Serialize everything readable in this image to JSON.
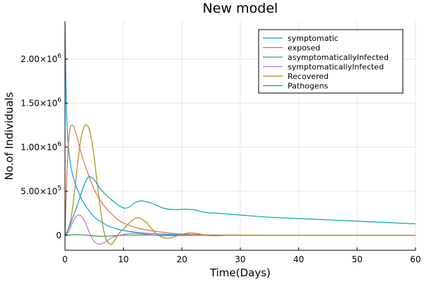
{
  "chart_data": {
    "type": "line",
    "title": "New model",
    "xlabel": "Time(Days)",
    "ylabel": "No.of Individuals",
    "xlim": [
      0,
      60
    ],
    "ylim": [
      -170000,
      2430000
    ],
    "grid": true,
    "legend_position": "top-right",
    "x_ticks": [
      {
        "value": 0,
        "label": "0"
      },
      {
        "value": 10,
        "label": "10"
      },
      {
        "value": 20,
        "label": "20"
      },
      {
        "value": 30,
        "label": "30"
      },
      {
        "value": 40,
        "label": "40"
      },
      {
        "value": 50,
        "label": "50"
      },
      {
        "value": 60,
        "label": "60"
      }
    ],
    "y_ticks": [
      {
        "value": 0,
        "mantissa": "0",
        "exponent": ""
      },
      {
        "value": 500000,
        "mantissa": "5.00×10",
        "exponent": "5"
      },
      {
        "value": 1000000,
        "mantissa": "1.00×10",
        "exponent": "6"
      },
      {
        "value": 1500000,
        "mantissa": "1.50×10",
        "exponent": "6"
      },
      {
        "value": 2000000,
        "mantissa": "2.00×10",
        "exponent": "6"
      }
    ],
    "series": [
      {
        "name": "symptomatic",
        "color": "#009af9",
        "x": [
          0,
          0.2,
          0.5,
          1,
          1.5,
          2,
          3,
          4,
          5,
          6,
          7,
          8,
          9,
          10,
          12,
          14,
          16,
          18,
          20,
          25,
          30,
          40,
          50,
          60
        ],
        "y": [
          2400000,
          1560000,
          1070000,
          780000,
          640000,
          540000,
          390000,
          290000,
          210000,
          160000,
          120000,
          90000,
          70000,
          55000,
          35000,
          22000,
          15000,
          10000,
          7000,
          3000,
          1000,
          0,
          0,
          0
        ]
      },
      {
        "name": "exposed",
        "color": "#e26f46",
        "x": [
          0,
          0.3,
          0.6,
          0.9,
          1.2,
          1.5,
          2,
          2.5,
          3,
          4,
          5,
          6,
          7,
          8,
          9,
          10,
          12,
          14,
          16,
          18,
          20,
          22,
          25,
          30,
          40,
          50,
          60
        ],
        "y": [
          0,
          650000,
          1050000,
          1220000,
          1250000,
          1230000,
          1130000,
          1000000,
          880000,
          690000,
          520000,
          400000,
          310000,
          240000,
          180000,
          140000,
          90000,
          60000,
          40000,
          25000,
          15000,
          10000,
          5000,
          2000,
          0,
          0,
          0
        ]
      },
      {
        "name": "asymptomaticallyInfected",
        "color": "#3da44d",
        "x": [
          0,
          1,
          2,
          3,
          4,
          5,
          6,
          7,
          8,
          10,
          12,
          15,
          20,
          25,
          30,
          40,
          50,
          60
        ],
        "y": [
          0,
          5000,
          8000,
          5000,
          0,
          -8000,
          -12000,
          -12000,
          -8000,
          0,
          3000,
          2000,
          0,
          0,
          0,
          0,
          0,
          0
        ]
      },
      {
        "name": "symptomaticallyInfected",
        "color": "#c271d2",
        "x": [
          0,
          0.5,
          1,
          1.5,
          2,
          2.5,
          3,
          3.5,
          4,
          4.5,
          5,
          5.5,
          6,
          6.5,
          7,
          8,
          9,
          10,
          11,
          12,
          13,
          14,
          15,
          16,
          18,
          20,
          25,
          30,
          40,
          50,
          60
        ],
        "y": [
          0,
          30000,
          100000,
          170000,
          220000,
          230000,
          200000,
          140000,
          60000,
          -20000,
          -70000,
          -95000,
          -100000,
          -90000,
          -70000,
          -30000,
          -5000,
          10000,
          20000,
          22000,
          18000,
          10000,
          3000,
          -3000,
          -5000,
          -3000,
          0,
          0,
          0,
          0,
          0
        ]
      },
      {
        "name": "Recovered",
        "color": "#ac8d18",
        "x": [
          0,
          0.5,
          1,
          1.5,
          2,
          2.5,
          3,
          3.5,
          4,
          4.5,
          5,
          5.5,
          6,
          6.5,
          7,
          7.5,
          8,
          8.5,
          9,
          9.5,
          10,
          11,
          12,
          12.5,
          13,
          14,
          15,
          16,
          17,
          18,
          19,
          20,
          21,
          22,
          23,
          24,
          26,
          28,
          30,
          35,
          40,
          50,
          60
        ],
        "y": [
          0,
          60000,
          180000,
          420000,
          720000,
          1000000,
          1180000,
          1250000,
          1230000,
          1100000,
          880000,
          600000,
          330000,
          100000,
          -40000,
          -90000,
          -100000,
          -60000,
          0,
          40000,
          70000,
          140000,
          190000,
          200000,
          190000,
          140000,
          60000,
          0,
          -30000,
          -30000,
          -10000,
          10000,
          25000,
          25000,
          15000,
          0,
          -5000,
          0,
          2000,
          0,
          0,
          0,
          0
        ]
      },
      {
        "name": "Pathogens",
        "color": "#00a9ad",
        "x": [
          0,
          0.5,
          1,
          1.5,
          2,
          2.5,
          3,
          3.5,
          4,
          4.5,
          5,
          5.5,
          6,
          7,
          8,
          9,
          10,
          11,
          12,
          13,
          14,
          15,
          16,
          17,
          18,
          19,
          20,
          21,
          22,
          23,
          24,
          25,
          26,
          28,
          30,
          35,
          40,
          45,
          50,
          55,
          60
        ],
        "y": [
          0,
          60000,
          140000,
          230000,
          320000,
          420000,
          520000,
          610000,
          660000,
          660000,
          630000,
          580000,
          530000,
          460000,
          400000,
          350000,
          310000,
          320000,
          370000,
          390000,
          380000,
          360000,
          330000,
          305000,
          295000,
          290000,
          295000,
          295000,
          290000,
          275000,
          260000,
          255000,
          250000,
          240000,
          230000,
          205000,
          190000,
          175000,
          160000,
          145000,
          130000
        ]
      }
    ]
  }
}
